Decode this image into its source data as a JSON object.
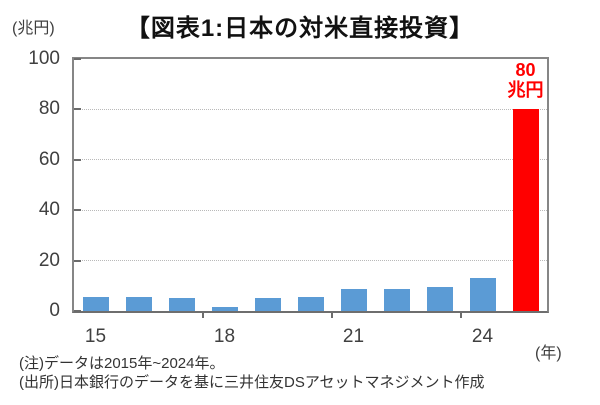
{
  "title": "【図表1:日本の対米直接投資】",
  "y_axis_unit": "(兆円)",
  "x_axis_unit": "(年)",
  "notes": [
    "(注)データは2015年~2024年。",
    "(出所)日本銀行のデータを基に三井住友DSアセットマネジメント作成"
  ],
  "chart_data": {
    "type": "bar",
    "title": "【図表1:日本の対米直接投資】",
    "ylabel": "(兆円)",
    "xlabel": "(年)",
    "ylim": [
      0,
      100
    ],
    "yticks": [
      0,
      20,
      40,
      60,
      80,
      100
    ],
    "grid": "horizontal-dotted",
    "legend": "none",
    "categories": [
      "2015",
      "2016",
      "2017",
      "2018",
      "2019",
      "2020",
      "2021",
      "2022",
      "2023",
      "2024",
      ""
    ],
    "values": [
      5.7,
      5.6,
      5.0,
      1.7,
      5.0,
      5.6,
      8.6,
      8.7,
      9.5,
      13.2,
      80
    ],
    "bar_colors": [
      "#5B9BD5",
      "#5B9BD5",
      "#5B9BD5",
      "#5B9BD5",
      "#5B9BD5",
      "#5B9BD5",
      "#5B9BD5",
      "#5B9BD5",
      "#5B9BD5",
      "#5B9BD5",
      "#FF0000"
    ],
    "xticks": [
      {
        "slot": 0,
        "label": "15"
      },
      {
        "slot": 3,
        "label": "18"
      },
      {
        "slot": 6,
        "label": "21"
      },
      {
        "slot": 9,
        "label": "24"
      }
    ],
    "boundary_tick_slots": [
      3,
      6,
      9
    ],
    "annotation": {
      "slot": 10,
      "lines": [
        "80",
        "兆円"
      ],
      "color": "#FF0000"
    },
    "colors": {
      "bar_blue": "#5B9BD5",
      "bar_red": "#FF0000",
      "grid": "#B9B9B9",
      "frame": "#868686",
      "axis_text": "#404040"
    }
  }
}
